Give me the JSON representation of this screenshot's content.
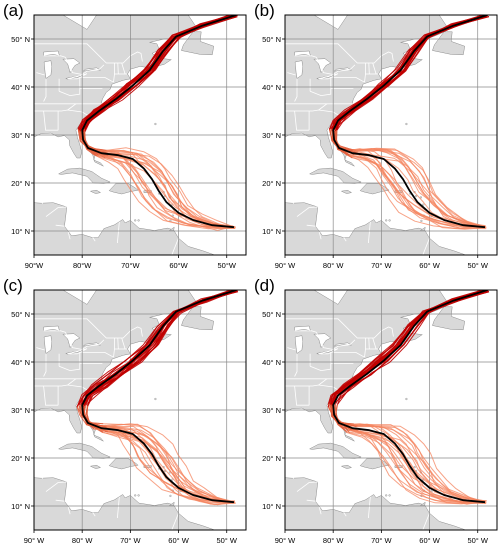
{
  "figure": {
    "panels": [
      {
        "label": "(a)"
      },
      {
        "label": "(b)"
      },
      {
        "label": "(c)"
      },
      {
        "label": "(d)"
      }
    ],
    "lat_ticks": [
      "10° N",
      "20° N",
      "30° N",
      "40° N",
      "50° N"
    ],
    "lon_ticks_a": [
      "90°W",
      "80°W",
      "70°W",
      "60°W",
      "50°W"
    ],
    "lon_ticks": [
      "90° W",
      "80° W",
      "70° W",
      "60° W",
      "50° W"
    ]
  },
  "map_extent": {
    "lon": [
      -90,
      -46
    ],
    "lat": [
      5,
      55
    ]
  },
  "colors": {
    "land": "#d9d9d9",
    "ocean": "#ffffff",
    "coast": "#8c8c8c",
    "grid": "#8a8a8a",
    "observed_track": "#000000",
    "ensemble_dark": "#c00000",
    "ensemble_light": "#f4845f"
  },
  "observed_track": [
    [
      -48.5,
      10.8
    ],
    [
      -53,
      11.2
    ],
    [
      -57,
      12.3
    ],
    [
      -60,
      13.8
    ],
    [
      -62.5,
      16
    ],
    [
      -64.2,
      18.5
    ],
    [
      -65.5,
      20.8
    ],
    [
      -67.2,
      23
    ],
    [
      -69.5,
      25
    ],
    [
      -72.5,
      25.8
    ],
    [
      -76,
      26.2
    ],
    [
      -78.8,
      27.3
    ],
    [
      -79.8,
      29
    ],
    [
      -80,
      31
    ],
    [
      -79,
      33
    ],
    [
      -76.5,
      35
    ],
    [
      -73,
      37.5
    ],
    [
      -69.5,
      40.3
    ],
    [
      -66,
      43.5
    ],
    [
      -63.2,
      47.5
    ],
    [
      -60.5,
      50.5
    ],
    [
      -55,
      52.8
    ],
    [
      -48,
      55
    ]
  ]
}
